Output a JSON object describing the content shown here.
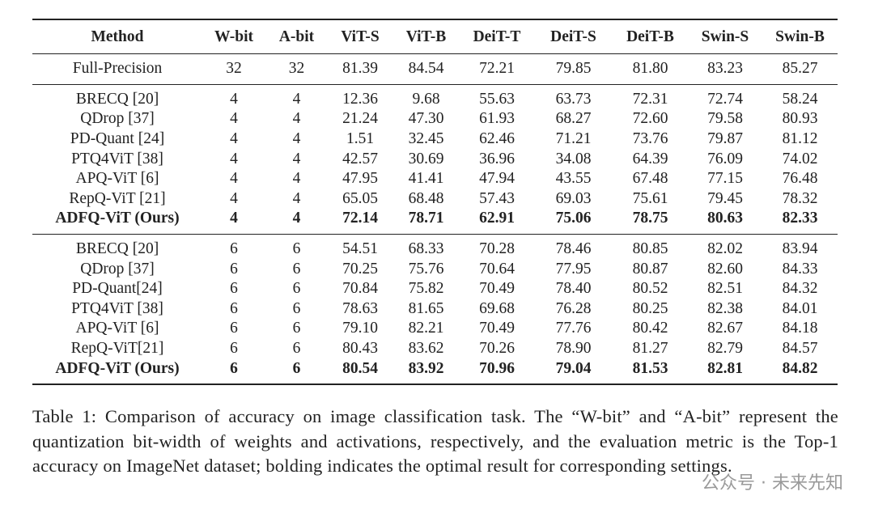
{
  "table": {
    "header": [
      "Method",
      "W-bit",
      "A-bit",
      "ViT-S",
      "ViT-B",
      "DeiT-T",
      "DeiT-S",
      "DeiT-B",
      "Swin-S",
      "Swin-B"
    ],
    "groups": [
      {
        "rows": [
          {
            "cells": [
              "Full-Precision",
              "32",
              "32",
              "81.39",
              "84.54",
              "72.21",
              "79.85",
              "81.80",
              "83.23",
              "85.27"
            ]
          }
        ]
      },
      {
        "rows": [
          {
            "cells": [
              "BRECQ [20]",
              "4",
              "4",
              "12.36",
              "9.68",
              "55.63",
              "63.73",
              "72.31",
              "72.74",
              "58.24"
            ]
          },
          {
            "cells": [
              "QDrop [37]",
              "4",
              "4",
              "21.24",
              "47.30",
              "61.93",
              "68.27",
              "72.60",
              "79.58",
              "80.93"
            ]
          },
          {
            "cells": [
              "PD-Quant [24]",
              "4",
              "4",
              "1.51",
              "32.45",
              "62.46",
              "71.21",
              "73.76",
              "79.87",
              "81.12"
            ]
          },
          {
            "cells": [
              "PTQ4ViT [38]",
              "4",
              "4",
              "42.57",
              "30.69",
              "36.96",
              "34.08",
              "64.39",
              "76.09",
              "74.02"
            ]
          },
          {
            "cells": [
              "APQ-ViT [6]",
              "4",
              "4",
              "47.95",
              "41.41",
              "47.94",
              "43.55",
              "67.48",
              "77.15",
              "76.48"
            ]
          },
          {
            "cells": [
              "RepQ-ViT [21]",
              "4",
              "4",
              "65.05",
              "68.48",
              "57.43",
              "69.03",
              "75.61",
              "79.45",
              "78.32"
            ]
          },
          {
            "cells": [
              "ADFQ-ViT (Ours)",
              "4",
              "4",
              "72.14",
              "78.71",
              "62.91",
              "75.06",
              "78.75",
              "80.63",
              "82.33"
            ],
            "bold": true
          }
        ]
      },
      {
        "rows": [
          {
            "cells": [
              "BRECQ [20]",
              "6",
              "6",
              "54.51",
              "68.33",
              "70.28",
              "78.46",
              "80.85",
              "82.02",
              "83.94"
            ]
          },
          {
            "cells": [
              "QDrop [37]",
              "6",
              "6",
              "70.25",
              "75.76",
              "70.64",
              "77.95",
              "80.87",
              "82.60",
              "84.33"
            ]
          },
          {
            "cells": [
              "PD-Quant[24]",
              "6",
              "6",
              "70.84",
              "75.82",
              "70.49",
              "78.40",
              "80.52",
              "82.51",
              "84.32"
            ]
          },
          {
            "cells": [
              "PTQ4ViT [38]",
              "6",
              "6",
              "78.63",
              "81.65",
              "69.68",
              "76.28",
              "80.25",
              "82.38",
              "84.01"
            ]
          },
          {
            "cells": [
              "APQ-ViT [6]",
              "6",
              "6",
              "79.10",
              "82.21",
              "70.49",
              "77.76",
              "80.42",
              "82.67",
              "84.18"
            ]
          },
          {
            "cells": [
              "RepQ-ViT[21]",
              "6",
              "6",
              "80.43",
              "83.62",
              "70.26",
              "78.90",
              "81.27",
              "82.79",
              "84.57"
            ]
          },
          {
            "cells": [
              "ADFQ-ViT (Ours)",
              "6",
              "6",
              "80.54",
              "83.92",
              "70.96",
              "79.04",
              "81.53",
              "82.81",
              "84.82"
            ],
            "bold": true
          }
        ]
      }
    ]
  },
  "caption": "Table 1: Comparison of accuracy on image classification task. The “W-bit” and “A-bit” represent the quantization bit-width of weights and activations, respectively, and the evaluation metric is the Top-1 accuracy on ImageNet dataset; bolding indicates the optimal result for corresponding settings.",
  "watermark": "公众号 · 未来先知"
}
